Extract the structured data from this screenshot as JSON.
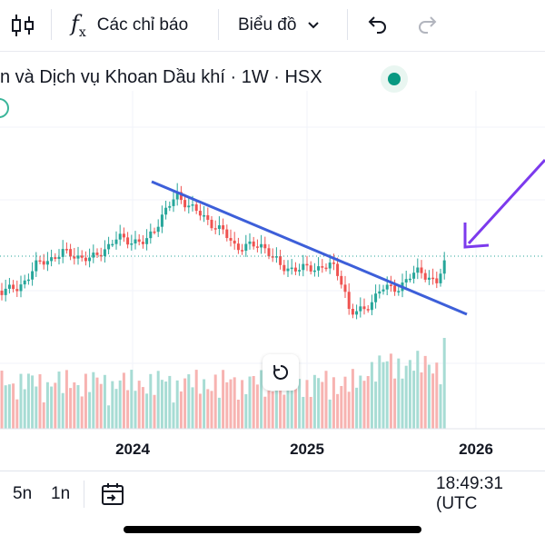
{
  "toolbar": {
    "indicators_label": "Các chỉ báo",
    "chart_type_label": "Biểu đồ"
  },
  "symbol": {
    "title": "n và Dịch vụ Khoan Dầu khí · 1W · HSX",
    "status_color": "#089981"
  },
  "bottom_bar": {
    "range_5y": "5n",
    "range_1y": "1n",
    "clock": "18:49:31 (UTC"
  },
  "colors": {
    "up": "#26a69a",
    "down": "#ef5350",
    "vol_up": "#a7dcd4",
    "vol_down": "#f7b3b1",
    "trendline": "#3d5fd9",
    "arrow": "#7c3aed"
  },
  "chart_data": {
    "type": "candlestick",
    "x_ticks": [
      "2024",
      "2025",
      "2026"
    ],
    "annotations": [
      "descending trendline",
      "arrow pointing to latest candle"
    ]
  }
}
